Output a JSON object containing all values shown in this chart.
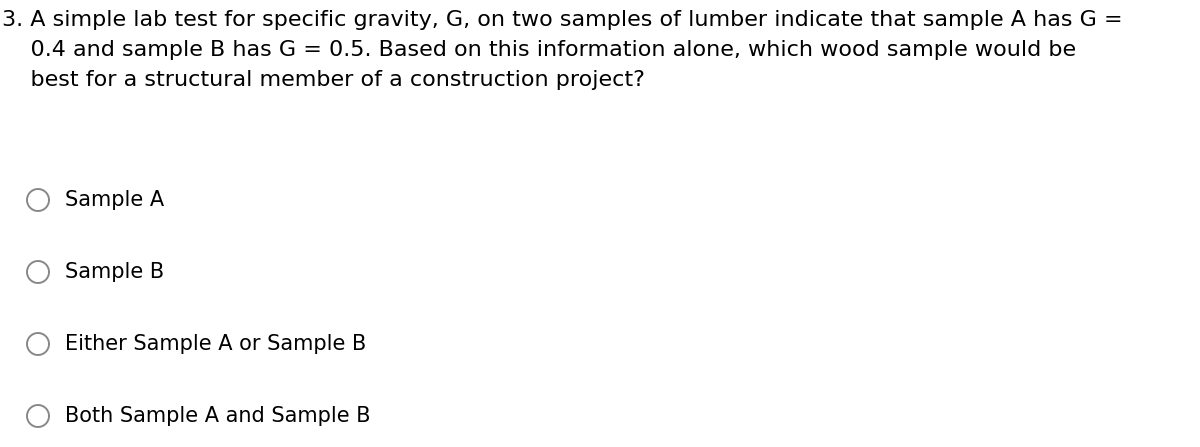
{
  "background_color": "#ffffff",
  "question_line1": "3. A simple lab test for specific gravity, G, on two samples of lumber indicate that sample A has G =",
  "question_line2": "    0.4 and sample B has G = 0.5. Based on this information alone, which wood sample would be",
  "question_line3": "    best for a structural member of a construction project?",
  "options": [
    "Sample A",
    "Sample B",
    "Either Sample A or Sample B",
    "Both Sample A and Sample B"
  ],
  "text_color": "#000000",
  "font_size_question": 16,
  "font_size_options": 15,
  "circle_edge_color": "#888888",
  "circle_face_color": "#ffffff",
  "circle_linewidth": 1.4,
  "background_color_fig": "#ffffff"
}
